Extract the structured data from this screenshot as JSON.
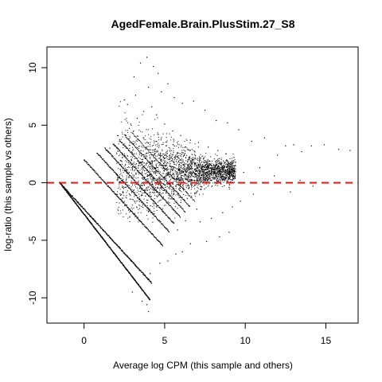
{
  "chart_data": {
    "type": "scatter",
    "title": "AgedFemale.Brain.PlusStim.27_S8",
    "xlabel": "Average log CPM (this sample and others)",
    "ylabel": "log-ratio (this sample vs others)",
    "xlim": [
      -2.3,
      17.0
    ],
    "ylim": [
      -12.2,
      11.8
    ],
    "x_ticks": [
      0,
      5,
      10,
      15
    ],
    "y_ticks": [
      -10,
      -5,
      0,
      5,
      10
    ],
    "reference_line": {
      "y": 0,
      "color": "#e8191b",
      "style": "dashed"
    },
    "point_color": "#000000",
    "series": [
      {
        "points": [
          [
            3.1,
            9.2
          ],
          [
            3.5,
            10.4
          ],
          [
            3.9,
            10.9
          ],
          [
            4.3,
            10.1
          ],
          [
            4.6,
            9.5
          ],
          [
            5.2,
            8.6
          ],
          [
            2.5,
            7.2
          ],
          [
            2.7,
            6.8
          ],
          [
            3.2,
            7.6
          ],
          [
            4.0,
            8.3
          ],
          [
            4.8,
            7.9
          ],
          [
            5.6,
            7.4
          ],
          [
            6.1,
            6.9
          ],
          [
            6.8,
            7.1
          ],
          [
            7.5,
            6.3
          ],
          [
            8.2,
            5.4
          ],
          [
            8.9,
            5.2
          ],
          [
            9.6,
            4.6
          ],
          [
            10.4,
            3.6
          ],
          [
            11.2,
            3.9
          ],
          [
            12.5,
            3.2
          ],
          [
            13.0,
            3.3
          ],
          [
            14.1,
            3.2
          ],
          [
            14.9,
            3.3
          ],
          [
            15.8,
            2.9
          ],
          [
            16.5,
            2.8
          ],
          [
            12.0,
            2.4
          ],
          [
            13.5,
            2.7
          ],
          [
            10.9,
            1.3
          ],
          [
            9.9,
            0.9
          ],
          [
            11.8,
            0.6
          ],
          [
            13.4,
            0.2
          ],
          [
            14.2,
            -0.3
          ],
          [
            12.8,
            -0.8
          ],
          [
            10.5,
            -1.0
          ],
          [
            9.7,
            -1.6
          ],
          [
            9.2,
            -2.1
          ],
          [
            8.6,
            -2.6
          ],
          [
            7.9,
            -3.1
          ],
          [
            7.2,
            -3.4
          ],
          [
            6.3,
            -3.3
          ],
          [
            5.8,
            -4.1
          ],
          [
            9.0,
            -4.3
          ],
          [
            8.4,
            -4.7
          ],
          [
            7.6,
            -5.1
          ],
          [
            6.6,
            -5.3
          ],
          [
            5.7,
            -6.2
          ],
          [
            5.2,
            -6.8
          ],
          [
            6.1,
            -6.0
          ],
          [
            4.7,
            -7.0
          ],
          [
            4.1,
            -7.9
          ],
          [
            3.0,
            -9.5
          ],
          [
            3.6,
            -10.3
          ],
          [
            3.9,
            -10.6
          ],
          [
            4.0,
            -11.2
          ],
          [
            2.6,
            4.1
          ],
          [
            2.2,
            3.6
          ],
          [
            1.9,
            3.2
          ],
          [
            1.6,
            3.0
          ],
          [
            2.9,
            5.1
          ],
          [
            3.3,
            5.6
          ],
          [
            3.7,
            6.2
          ],
          [
            4.2,
            6.6
          ],
          [
            4.5,
            5.9
          ],
          [
            5.0,
            5.1
          ],
          [
            5.5,
            4.5
          ],
          [
            6.0,
            4.1
          ],
          [
            6.6,
            3.7
          ],
          [
            7.1,
            3.5
          ],
          [
            7.7,
            3.1
          ],
          [
            8.3,
            2.8
          ],
          [
            8.8,
            2.5
          ],
          [
            9.3,
            2.2
          ],
          [
            5.3,
            2.0
          ],
          [
            5.9,
            1.6
          ],
          [
            6.4,
            1.2
          ],
          [
            6.9,
            0.8
          ],
          [
            7.4,
            0.5
          ],
          [
            7.9,
            0.2
          ],
          [
            8.5,
            -0.1
          ],
          [
            9.0,
            -0.4
          ],
          [
            4.9,
            -0.9
          ],
          [
            5.4,
            -1.4
          ],
          [
            6.0,
            -1.7
          ],
          [
            6.5,
            -2.0
          ],
          [
            7.0,
            -2.3
          ],
          [
            3.4,
            1.5
          ],
          [
            3.8,
            2.1
          ],
          [
            4.4,
            2.7
          ],
          [
            5.1,
            3.2
          ],
          [
            2.8,
            0.9
          ],
          [
            3.0,
            2.6
          ]
        ]
      }
    ]
  }
}
